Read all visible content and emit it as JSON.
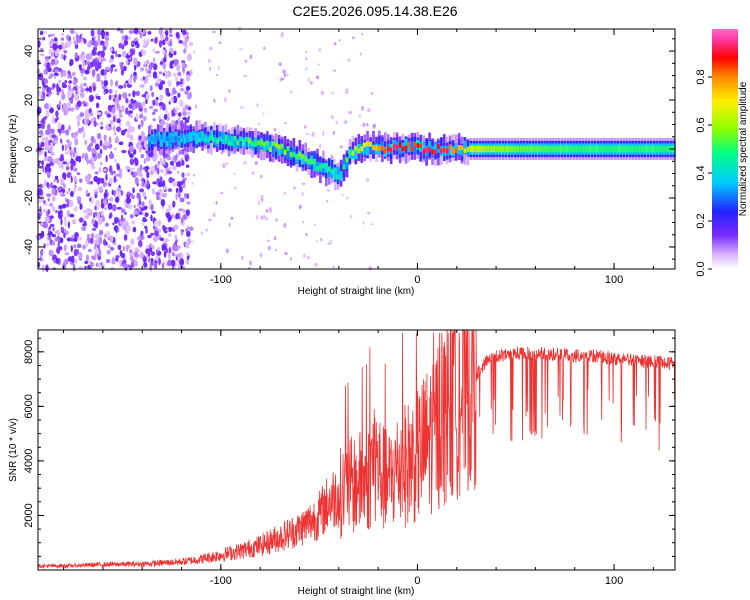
{
  "title": "C2E5.2026.095.14.38.E26",
  "chart_data": [
    {
      "type": "heatmap",
      "xlabel": "Height of straight line (km)",
      "ylabel": "Frequency (Hz)",
      "xlim": [
        -193,
        131
      ],
      "ylim": [
        -49,
        49
      ],
      "x_ticks": [
        -100,
        0,
        100
      ],
      "x_tick_labels": [
        "-100",
        "0",
        "100"
      ],
      "y_ticks": [
        -40,
        -20,
        0,
        20,
        40
      ],
      "y_tick_labels": [
        "-40",
        "-20",
        "0",
        "20",
        "40"
      ],
      "colorbar": {
        "label": "Normalized spectral amplitude",
        "range": [
          0,
          1
        ],
        "ticks": [
          0.0,
          0.2,
          0.4,
          0.6,
          0.8
        ],
        "tick_labels": [
          "0.0",
          "0.2",
          "0.4",
          "0.6",
          "0.8"
        ],
        "colormap": [
          "#ffffff",
          "#d9b3ff",
          "#7b2cff",
          "#2222ff",
          "#00ccff",
          "#00ff88",
          "#88ff00",
          "#ffee00",
          "#ff8800",
          "#ff0000",
          "#ff3399",
          "#ff66cc"
        ]
      },
      "trace": [
        {
          "x": -138,
          "f": 3,
          "a": 0.28
        },
        {
          "x": -130,
          "f": 4,
          "a": 0.3
        },
        {
          "x": -120,
          "f": 5,
          "a": 0.35
        },
        {
          "x": -110,
          "f": 5,
          "a": 0.4
        },
        {
          "x": -100,
          "f": 4,
          "a": 0.45
        },
        {
          "x": -90,
          "f": 3,
          "a": 0.5
        },
        {
          "x": -80,
          "f": 2,
          "a": 0.55
        },
        {
          "x": -70,
          "f": 0,
          "a": 0.55
        },
        {
          "x": -60,
          "f": -3,
          "a": 0.55
        },
        {
          "x": -50,
          "f": -7,
          "a": 0.5
        },
        {
          "x": -40,
          "f": -11,
          "a": 0.4
        },
        {
          "x": -35,
          "f": -2,
          "a": 0.55
        },
        {
          "x": -25,
          "f": 1,
          "a": 0.7
        },
        {
          "x": -15,
          "f": 0,
          "a": 0.9
        },
        {
          "x": -5,
          "f": 1,
          "a": 0.85
        },
        {
          "x": 5,
          "f": 0,
          "a": 0.9
        },
        {
          "x": 15,
          "f": 0,
          "a": 0.88
        },
        {
          "x": 25,
          "f": 0,
          "a": 0.65
        },
        {
          "x": 50,
          "f": 0,
          "a": 0.55
        },
        {
          "x": 80,
          "f": 0,
          "a": 0.5
        },
        {
          "x": 110,
          "f": 0,
          "a": 0.5
        },
        {
          "x": 131,
          "f": 0,
          "a": 0.5
        }
      ]
    },
    {
      "type": "line",
      "xlabel": "Height of straight line (km)",
      "ylabel": "SNR (10 * v/v)",
      "xlim": [
        -193,
        131
      ],
      "ylim": [
        0,
        8800
      ],
      "x_ticks": [
        -100,
        0,
        100
      ],
      "x_tick_labels": [
        "-100",
        "0",
        "100"
      ],
      "y_ticks": [
        2000,
        4000,
        6000,
        8000
      ],
      "y_tick_labels": [
        "2000",
        "4000",
        "6000",
        "8000"
      ],
      "series": [
        {
          "name": "SNR",
          "color": "#ee3333",
          "x": [
            -193,
            -180,
            -160,
            -140,
            -120,
            -110,
            -100,
            -90,
            -80,
            -70,
            -60,
            -50,
            -45,
            -40,
            -35,
            -30,
            -25,
            -22,
            -20,
            -18,
            -15,
            -12,
            -10,
            -5,
            0,
            5,
            10,
            15,
            20,
            25,
            30,
            35,
            40,
            45,
            50,
            60,
            70,
            80,
            90,
            100,
            110,
            120,
            131
          ],
          "y": [
            150,
            150,
            200,
            220,
            300,
            400,
            550,
            700,
            900,
            1200,
            1500,
            2000,
            2500,
            2800,
            3000,
            3200,
            3300,
            4200,
            3800,
            3400,
            3200,
            3500,
            3700,
            3900,
            4200,
            4700,
            5300,
            5800,
            6300,
            6900,
            7400,
            7900,
            8100,
            8150,
            8200,
            8200,
            8150,
            8100,
            8100,
            8000,
            7900,
            7900,
            7800
          ]
        }
      ]
    }
  ]
}
